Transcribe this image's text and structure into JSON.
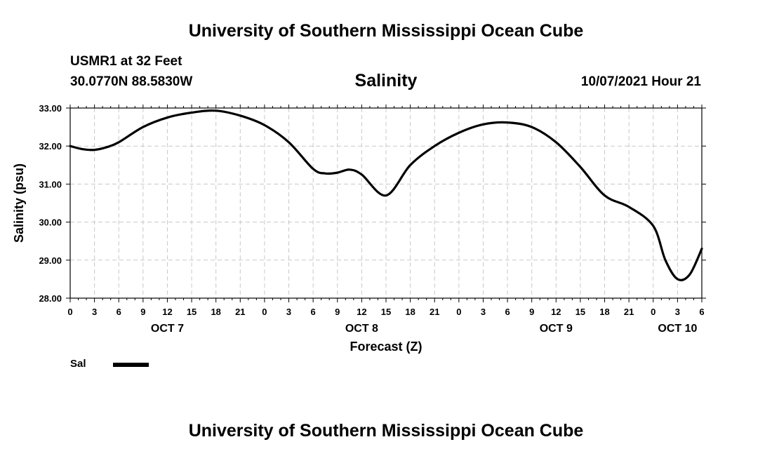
{
  "header": {
    "title": "University of Southern Mississippi Ocean Cube",
    "station": "USMR1 at 32 Feet",
    "coordinates": "30.0770N  88.5830W",
    "chart_title": "Salinity",
    "datetime": "10/07/2021 Hour 21"
  },
  "footer": {
    "title": "University of Southern Mississippi Ocean Cube"
  },
  "legend": {
    "series_label": "Sal"
  },
  "colors": {
    "line": "#000000",
    "grid": "#c8c8c8"
  },
  "chart_data": {
    "type": "line",
    "title": "Salinity",
    "xlabel": "Forecast (Z)",
    "ylabel": "Salinity (psu)",
    "ylim": [
      28.0,
      33.0
    ],
    "yticks": [
      "28.00",
      "29.00",
      "30.00",
      "31.00",
      "32.00",
      "33.00"
    ],
    "xlim_hours": [
      0,
      78
    ],
    "xtick_labels": [
      "0",
      "3",
      "6",
      "9",
      "12",
      "15",
      "18",
      "21",
      "0",
      "3",
      "6",
      "9",
      "12",
      "15",
      "18",
      "21",
      "0",
      "3",
      "6",
      "9",
      "12",
      "15",
      "18",
      "21",
      "0",
      "3",
      "6"
    ],
    "day_labels": [
      {
        "label": "OCT 7",
        "hour": 12
      },
      {
        "label": "OCT 8",
        "hour": 36
      },
      {
        "label": "OCT 9",
        "hour": 60
      },
      {
        "label": "OCT 10",
        "hour": 75
      }
    ],
    "grid": true,
    "series": [
      {
        "name": "Sal",
        "hours": [
          0,
          1.5,
          3,
          4.5,
          6,
          9,
          12,
          15,
          18,
          21,
          24,
          27,
          30,
          31.5,
          33,
          34.5,
          36,
          39,
          42,
          45,
          48,
          51,
          54,
          57,
          60,
          63,
          66,
          69,
          72,
          73.5,
          75,
          76.5,
          78
        ],
        "values": [
          32.0,
          31.92,
          31.9,
          31.97,
          32.1,
          32.5,
          32.75,
          32.88,
          32.93,
          32.8,
          32.55,
          32.1,
          31.4,
          31.28,
          31.3,
          31.38,
          31.25,
          30.7,
          31.5,
          32.0,
          32.35,
          32.57,
          32.62,
          32.5,
          32.1,
          31.45,
          30.7,
          30.4,
          29.9,
          29.0,
          28.5,
          28.62,
          29.3
        ]
      }
    ]
  }
}
